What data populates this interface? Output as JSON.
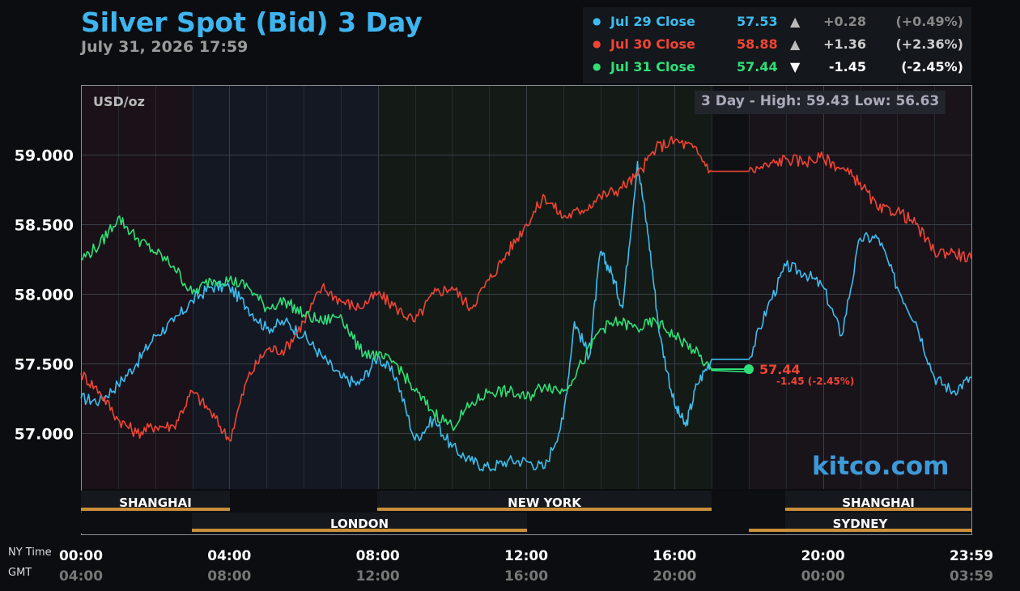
{
  "header": {
    "title": "Silver Spot (Bid) 3 Day",
    "subtitle": "July 31, 2026 17:59"
  },
  "legend": [
    {
      "name": "Jul 29 Close",
      "value": "57.53",
      "arrow": "▲",
      "change": "+0.28",
      "pct": "(+0.49%)",
      "color": "#3dbdf0"
    },
    {
      "name": "Jul 30 Close",
      "value": "58.88",
      "arrow": "▲",
      "change": "+1.36",
      "pct": "(+2.36%)",
      "color": "#f04535"
    },
    {
      "name": "Jul 31 Close",
      "value": "57.44",
      "arrow": "▼",
      "change": "-1.45",
      "pct": "(-2.45%)",
      "color": "#2fe078"
    }
  ],
  "chart": {
    "units": "USD/oz",
    "hilo": "3 Day - High: 59.43  Low: 56.63",
    "watermark": "kitco.com",
    "current_value": "57.44",
    "current_change": "-1.45 (-2.45%)",
    "side_labels": {
      "ny": "NY Time",
      "gmt": "GMT"
    },
    "markets": {
      "shanghai_1": "SHANGHAI",
      "new_york": "NEW YORK",
      "shanghai_2": "SHANGHAI",
      "london": "LONDON",
      "sydney": "SYDNEY"
    }
  },
  "chart_data": {
    "type": "line",
    "title": "Silver Spot (Bid) 3 Day",
    "ylabel": "USD/oz",
    "ylim": [
      56.6,
      59.43
    ],
    "xlim_hours": [
      0,
      24
    ],
    "y_ticks": [
      "57.000",
      "57.500",
      "58.000",
      "58.500",
      "59.000"
    ],
    "x_ticks_ny": [
      "00:00",
      "04:00",
      "08:00",
      "12:00",
      "16:00",
      "20:00",
      "23:59"
    ],
    "x_ticks_gmt": [
      "04:00",
      "08:00",
      "12:00",
      "16:00",
      "20:00",
      "00:00",
      "03:59"
    ],
    "series": [
      {
        "name": "Jul 29 Close",
        "color": "#3dbdf0",
        "points": [
          [
            0,
            57.25
          ],
          [
            0.5,
            57.23
          ],
          [
            1,
            57.35
          ],
          [
            1.5,
            57.5
          ],
          [
            2,
            57.7
          ],
          [
            2.5,
            57.8
          ],
          [
            3,
            57.95
          ],
          [
            3.5,
            58.05
          ],
          [
            4,
            58.05
          ],
          [
            4.5,
            57.9
          ],
          [
            5,
            57.75
          ],
          [
            5.5,
            57.8
          ],
          [
            6,
            57.7
          ],
          [
            6.5,
            57.55
          ],
          [
            7,
            57.4
          ],
          [
            7.5,
            57.35
          ],
          [
            8,
            57.55
          ],
          [
            8.5,
            57.4
          ],
          [
            9,
            56.95
          ],
          [
            9.5,
            57.1
          ],
          [
            10,
            56.9
          ],
          [
            10.5,
            56.8
          ],
          [
            11,
            56.75
          ],
          [
            11.5,
            56.8
          ],
          [
            12,
            56.8
          ],
          [
            12.5,
            56.75
          ],
          [
            13,
            57.1
          ],
          [
            13.3,
            57.8
          ],
          [
            13.7,
            57.55
          ],
          [
            14,
            58.3
          ],
          [
            14.3,
            58.15
          ],
          [
            14.6,
            57.9
          ],
          [
            15,
            58.95
          ],
          [
            15.3,
            58.4
          ],
          [
            15.6,
            57.7
          ],
          [
            16,
            57.2
          ],
          [
            16.3,
            57.05
          ],
          [
            16.6,
            57.35
          ],
          [
            17,
            57.53
          ],
          [
            18,
            57.53
          ],
          [
            18.5,
            57.9
          ],
          [
            19,
            58.2
          ],
          [
            19.5,
            58.15
          ],
          [
            20,
            58.05
          ],
          [
            20.5,
            57.7
          ],
          [
            21,
            58.4
          ],
          [
            21.5,
            58.4
          ],
          [
            22,
            58.05
          ],
          [
            22.5,
            57.8
          ],
          [
            23,
            57.4
          ],
          [
            23.5,
            57.3
          ],
          [
            24,
            57.4
          ]
        ]
      },
      {
        "name": "Jul 30 Close",
        "color": "#f04535",
        "points": [
          [
            0,
            57.43
          ],
          [
            0.5,
            57.3
          ],
          [
            1,
            57.1
          ],
          [
            1.5,
            57.0
          ],
          [
            2,
            57.05
          ],
          [
            2.5,
            57.05
          ],
          [
            3,
            57.3
          ],
          [
            3.5,
            57.15
          ],
          [
            4,
            56.95
          ],
          [
            4.5,
            57.4
          ],
          [
            5,
            57.6
          ],
          [
            5.5,
            57.6
          ],
          [
            6,
            57.8
          ],
          [
            6.5,
            58.05
          ],
          [
            7,
            57.95
          ],
          [
            7.5,
            57.9
          ],
          [
            8,
            58.0
          ],
          [
            8.5,
            57.9
          ],
          [
            9,
            57.8
          ],
          [
            9.5,
            58.0
          ],
          [
            10,
            58.05
          ],
          [
            10.5,
            57.9
          ],
          [
            11,
            58.1
          ],
          [
            11.5,
            58.3
          ],
          [
            12,
            58.5
          ],
          [
            12.5,
            58.7
          ],
          [
            13,
            58.55
          ],
          [
            13.5,
            58.6
          ],
          [
            14,
            58.7
          ],
          [
            14.5,
            58.75
          ],
          [
            15,
            58.85
          ],
          [
            15.5,
            59.05
          ],
          [
            16,
            59.1
          ],
          [
            16.5,
            59.05
          ],
          [
            17,
            58.88
          ],
          [
            18,
            58.88
          ],
          [
            18.5,
            58.92
          ],
          [
            19,
            58.97
          ],
          [
            19.5,
            58.95
          ],
          [
            20,
            58.98
          ],
          [
            20.5,
            58.9
          ],
          [
            21,
            58.8
          ],
          [
            21.5,
            58.6
          ],
          [
            22,
            58.6
          ],
          [
            22.5,
            58.5
          ],
          [
            23,
            58.3
          ],
          [
            23.5,
            58.3
          ],
          [
            24,
            58.25
          ]
        ]
      },
      {
        "name": "Jul 31 Close",
        "color": "#2fe078",
        "points": [
          [
            0,
            58.25
          ],
          [
            0.5,
            58.35
          ],
          [
            1,
            58.55
          ],
          [
            1.5,
            58.4
          ],
          [
            2,
            58.3
          ],
          [
            2.5,
            58.2
          ],
          [
            3,
            58.0
          ],
          [
            3.5,
            58.1
          ],
          [
            4,
            58.1
          ],
          [
            4.5,
            58.05
          ],
          [
            5,
            57.9
          ],
          [
            5.5,
            57.95
          ],
          [
            6,
            57.85
          ],
          [
            6.5,
            57.8
          ],
          [
            7,
            57.85
          ],
          [
            7.5,
            57.6
          ],
          [
            8,
            57.55
          ],
          [
            8.5,
            57.5
          ],
          [
            9,
            57.3
          ],
          [
            9.5,
            57.15
          ],
          [
            10,
            57.05
          ],
          [
            10.5,
            57.2
          ],
          [
            11,
            57.3
          ],
          [
            11.5,
            57.3
          ],
          [
            12,
            57.25
          ],
          [
            12.5,
            57.35
          ],
          [
            13,
            57.3
          ],
          [
            13.5,
            57.5
          ],
          [
            14,
            57.75
          ],
          [
            14.5,
            57.8
          ],
          [
            15,
            57.75
          ],
          [
            15.5,
            57.8
          ],
          [
            16,
            57.7
          ],
          [
            16.5,
            57.6
          ],
          [
            17,
            57.45
          ],
          [
            18,
            57.44
          ]
        ]
      }
    ]
  }
}
